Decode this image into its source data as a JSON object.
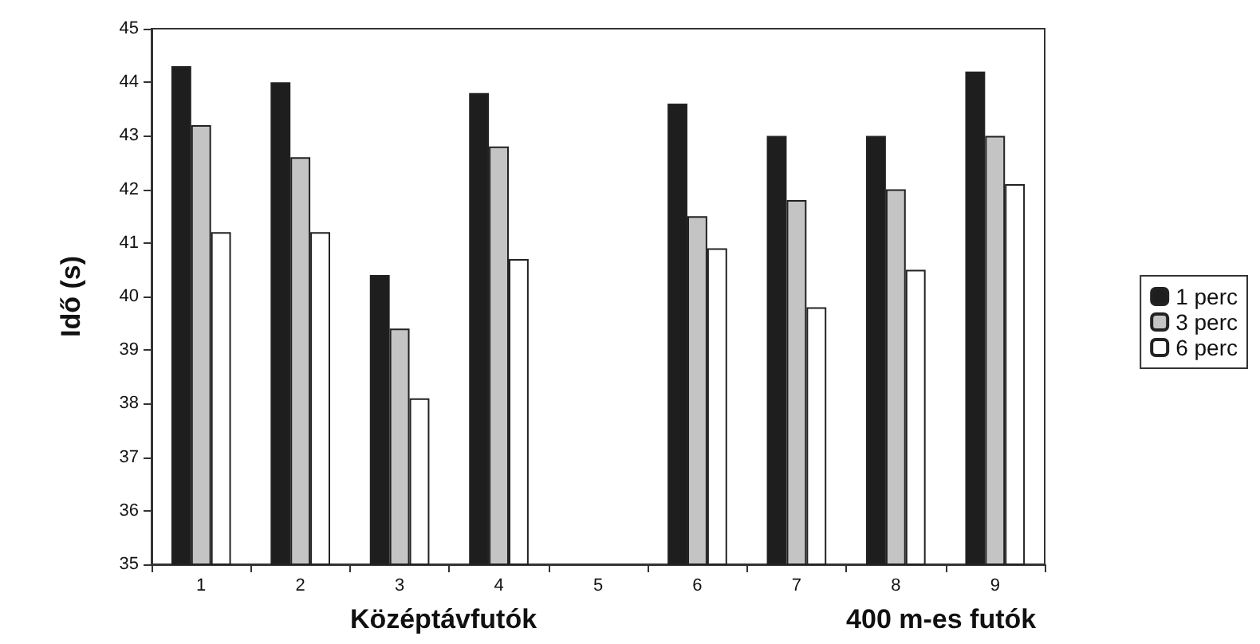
{
  "chart_data": {
    "type": "bar",
    "ylabel": "Idő (s)",
    "categories": [
      "1",
      "2",
      "3",
      "4",
      "5",
      "6",
      "7",
      "8",
      "9"
    ],
    "series": [
      {
        "name": "1 perc",
        "color": "#1e1e1e",
        "values": [
          44.3,
          44.0,
          40.4,
          43.8,
          null,
          43.6,
          43.0,
          43.0,
          44.2
        ]
      },
      {
        "name": "3 perc",
        "color": "#c4c4c4",
        "values": [
          43.2,
          42.6,
          39.4,
          42.8,
          null,
          41.5,
          41.8,
          42.0,
          43.0
        ]
      },
      {
        "name": "6 perc",
        "color": "#ffffff",
        "values": [
          41.2,
          41.2,
          38.1,
          40.7,
          null,
          40.9,
          39.8,
          40.5,
          42.1
        ]
      }
    ],
    "annotations": [
      "Középtávfutók",
      "400 m-es futók"
    ],
    "ylim": [
      35,
      45
    ],
    "yticks": [
      35,
      36,
      37,
      38,
      39,
      40,
      41,
      42,
      43,
      44,
      45
    ],
    "grid": false,
    "legend": "right"
  }
}
